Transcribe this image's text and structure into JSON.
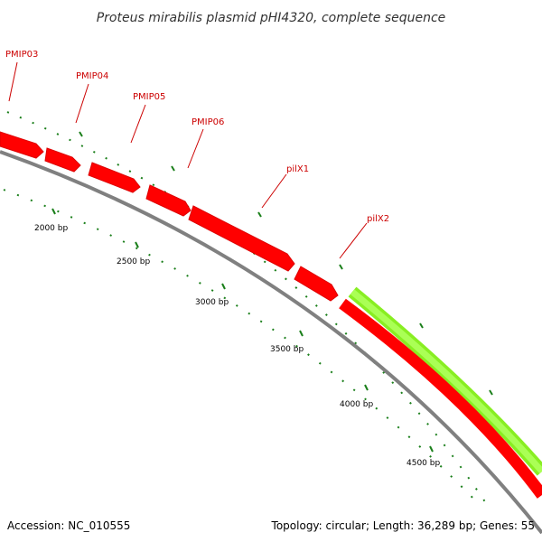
{
  "title": "Proteus mirabilis plasmid pHI4320, complete sequence",
  "footer": {
    "accession": "Accession: NC_010555",
    "summary": "Topology: circular; Length: 36,289 bp; Genes: 55"
  },
  "colors": {
    "gene_red": "#ff0000",
    "gene_green": "#99ff33",
    "backbone": "#808080",
    "tick": "#1a7f1a",
    "label": "#cc0000"
  },
  "bp_labels": [
    "2000 bp",
    "2500 bp",
    "3000 bp",
    "3500 bp",
    "4000 bp",
    "4500 bp"
  ],
  "gene_labels": [
    "PMIP03",
    "PMIP04",
    "PMIP05",
    "PMIP06",
    "pilX1",
    "pilX2"
  ]
}
